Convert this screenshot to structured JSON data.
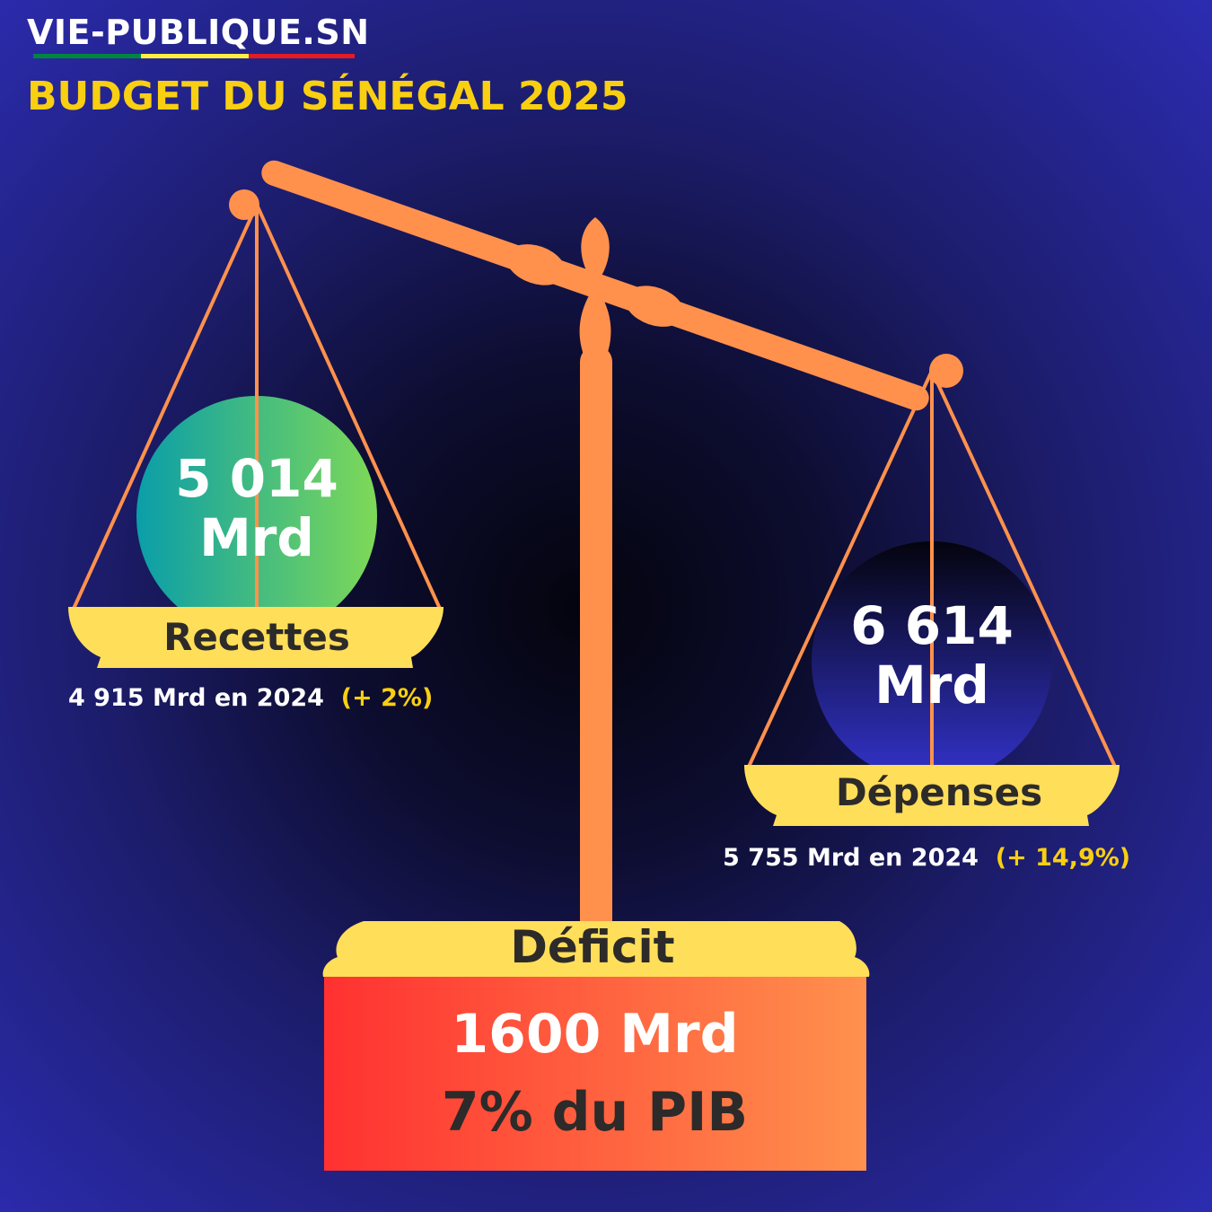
{
  "header": {
    "site_name": "VIE-PUBLIQUE.SN",
    "title": "BUDGET DU SÉNÉGAL 2025"
  },
  "revenues": {
    "value_line1": "5 014",
    "value_line2": "Mrd",
    "label": "Recettes",
    "previous": "4 915 Mrd en 2024",
    "change": "(+ 2%)"
  },
  "expenses": {
    "value_line1": "6 614",
    "value_line2": "Mrd",
    "label": "Dépenses",
    "previous": "5 755 Mrd en 2024",
    "change": "(+ 14,9%)"
  },
  "deficit": {
    "label": "Déficit",
    "amount": "1600 Mrd",
    "gdp_share": "7% du PIB"
  },
  "colors": {
    "background_edge": "#2c2cb2",
    "background_center": "#04040e",
    "scale": "#ff914d",
    "pan": "#ffde59",
    "accent_text": "#f9cf12",
    "revenue_ball_from": "#0a9ea9",
    "revenue_ball_to": "#7ed957",
    "expense_ball_from": "#04040e",
    "expense_ball_to": "#3333cc",
    "deficit_from": "#ff3131",
    "deficit_to": "#ff914d",
    "flag_green": "#00853f",
    "flag_yellow": "#fdef42",
    "flag_red": "#e31b23"
  }
}
